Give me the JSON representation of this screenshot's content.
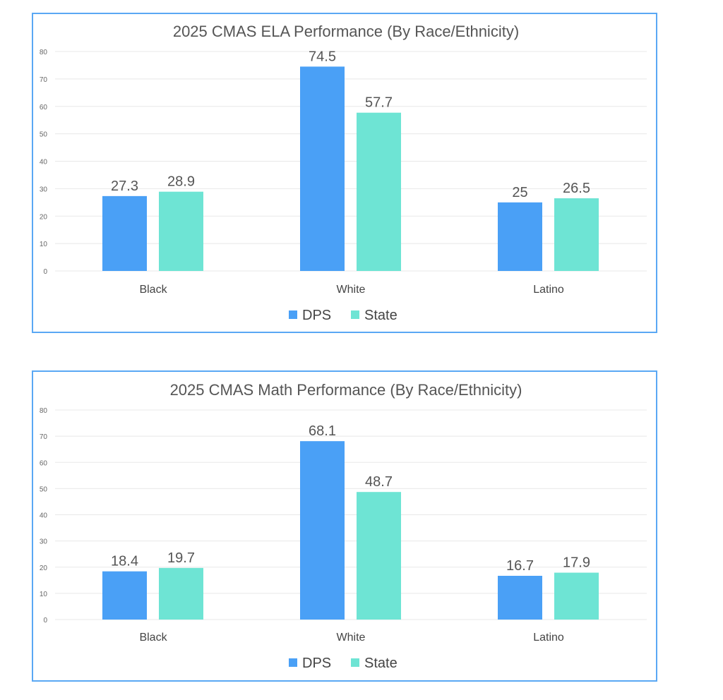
{
  "colors": {
    "DPS": "#4aa0f6",
    "State": "#6ee4d4",
    "frame": "#5aa8f4",
    "text": "#555555",
    "grid": "#e8e8e8"
  },
  "chart_data": [
    {
      "type": "bar",
      "title": "2025 CMAS ELA Performance (By Race/Ethnicity)",
      "categories": [
        "Black",
        "White",
        "Latino"
      ],
      "series": [
        {
          "name": "DPS",
          "values": [
            27.3,
            74.5,
            25
          ]
        },
        {
          "name": "State",
          "values": [
            28.9,
            57.7,
            26.5
          ]
        }
      ],
      "data_labels": [
        [
          "27.3",
          "74.5",
          "25"
        ],
        [
          "28.9",
          "57.7",
          "26.5"
        ]
      ],
      "yticks": [
        "0",
        "10",
        "20",
        "30",
        "40",
        "50",
        "60",
        "70",
        "80"
      ],
      "ylim": [
        0,
        80
      ],
      "grid": true,
      "legend": "bottom"
    },
    {
      "type": "bar",
      "title": "2025 CMAS Math Performance (By Race/Ethnicity)",
      "categories": [
        "Black",
        "White",
        "Latino"
      ],
      "series": [
        {
          "name": "DPS",
          "values": [
            18.4,
            68.1,
            16.7
          ]
        },
        {
          "name": "State",
          "values": [
            19.7,
            48.7,
            17.9
          ]
        }
      ],
      "data_labels": [
        [
          "18.4",
          "68.1",
          "16.7"
        ],
        [
          "19.7",
          "48.7",
          "17.9"
        ]
      ],
      "yticks": [
        "0",
        "10",
        "20",
        "30",
        "40",
        "50",
        "60",
        "70",
        "80"
      ],
      "ylim": [
        0,
        80
      ],
      "grid": true,
      "legend": "bottom"
    }
  ]
}
